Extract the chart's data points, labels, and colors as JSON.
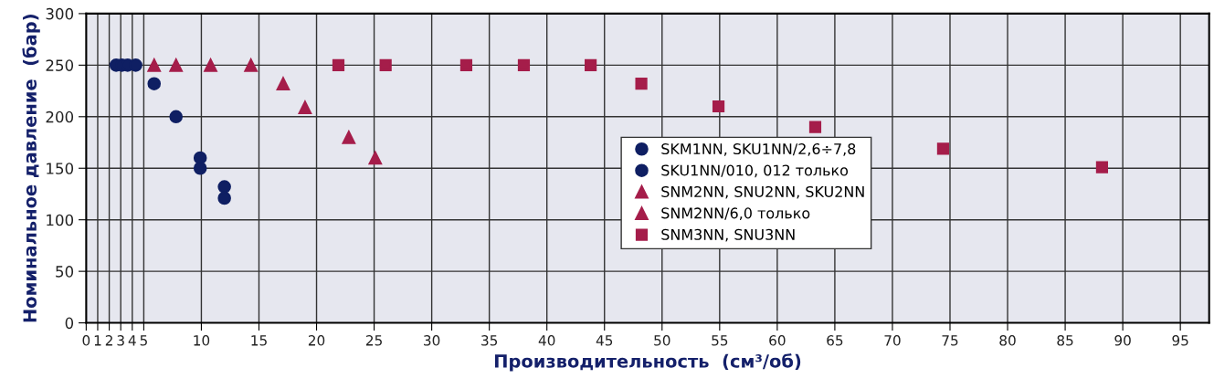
{
  "chart_data": {
    "type": "scatter",
    "xlabel": "Производительность  (см³/об)",
    "ylabel": "Номинальное давление  (бар)",
    "xlim": [
      0,
      97.5
    ],
    "xticks": [
      0,
      1,
      2,
      3,
      4,
      5,
      10,
      15,
      20,
      25,
      30,
      35,
      40,
      45,
      50,
      55,
      60,
      65,
      70,
      75,
      80,
      85,
      90,
      95
    ],
    "ylim": [
      0,
      300
    ],
    "yticks": [
      0,
      50,
      100,
      150,
      200,
      250,
      300
    ],
    "grid": true,
    "legend": "center",
    "series": [
      {
        "name": "SKM1NN, SKU1NN/2,6÷7,8",
        "color": "#0f1f63",
        "marker": "circle",
        "x": [
          2.6,
          3.1,
          3.6,
          4.3,
          5.9,
          7.8,
          9.9,
          12
        ],
        "values": [
          250,
          250,
          250,
          250,
          232,
          200,
          160,
          132
        ]
      },
      {
        "name": "SKU1NN/010, 012 только",
        "color": "#0f1f63",
        "marker": "circle",
        "x": [
          9.9,
          12
        ],
        "values": [
          150,
          121
        ]
      },
      {
        "name": "SNM2NN, SNU2NN, SKU2NN",
        "color": "#a51d4a",
        "marker": "triangle",
        "x": [
          7.8,
          10.8,
          14.3,
          17.1,
          19.0,
          22.8,
          25.1
        ],
        "values": [
          250,
          250,
          250,
          232,
          209,
          180,
          160
        ]
      },
      {
        "name": "SNM2NN/6,0 только",
        "color": "#a51d4a",
        "marker": "triangle",
        "x": [
          5.9
        ],
        "values": [
          250
        ]
      },
      {
        "name": "SNM3NN, SNU3NN",
        "color": "#a51d4a",
        "marker": "square",
        "x": [
          21.9,
          26,
          33,
          38,
          43.8,
          48.2,
          54.9,
          63.3,
          74.4,
          88.2
        ],
        "values": [
          250,
          250,
          250,
          250,
          250,
          232,
          210,
          190,
          169,
          151
        ]
      }
    ]
  }
}
